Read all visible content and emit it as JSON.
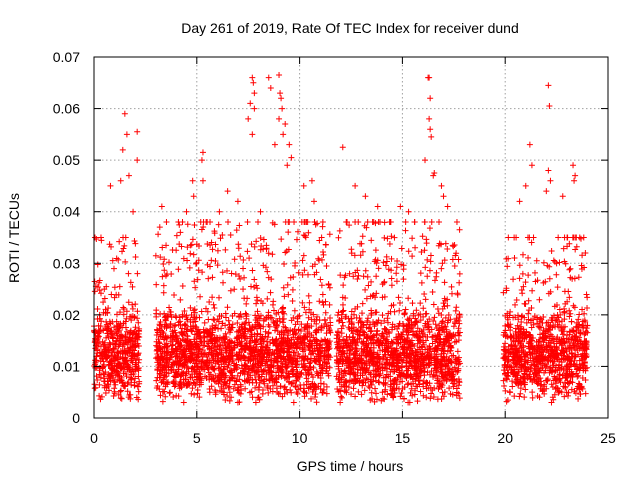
{
  "chart_data": {
    "type": "scatter",
    "title": "Day 261 of 2019, Rate Of TEC Index for receiver dund",
    "xlabel": "GPS time / hours",
    "ylabel": "ROTI / TECUs",
    "xlim": [
      0,
      25
    ],
    "ylim": [
      0,
      0.07
    ],
    "xticks": [
      0,
      5,
      10,
      15,
      20,
      25
    ],
    "yticks": [
      0,
      0.01,
      0.02,
      0.03,
      0.04,
      0.05,
      0.06,
      0.07
    ],
    "xtick_labels": [
      "0",
      "5",
      "10",
      "15",
      "20",
      "25"
    ],
    "ytick_labels": [
      "0",
      "0.01",
      "0.02",
      "0.03",
      "0.04",
      "0.05",
      "0.06",
      "0.07"
    ],
    "grid": true,
    "marker": "+",
    "color": "#ff0000",
    "data_gaps_hours": [
      [
        2.2,
        3.0
      ],
      [
        11.5,
        11.8
      ],
      [
        17.8,
        19.9
      ]
    ],
    "segments": [
      {
        "start": 0.0,
        "end": 2.2,
        "median": 0.012,
        "spread": 0.006,
        "max_typical": 0.035
      },
      {
        "start": 3.0,
        "end": 11.5,
        "median": 0.012,
        "spread": 0.006,
        "max_typical": 0.038
      },
      {
        "start": 11.8,
        "end": 17.8,
        "median": 0.012,
        "spread": 0.006,
        "max_typical": 0.038
      },
      {
        "start": 19.9,
        "end": 24.0,
        "median": 0.012,
        "spread": 0.006,
        "max_typical": 0.035
      }
    ],
    "peaks": [
      {
        "x": 1.5,
        "y": 0.059
      },
      {
        "x": 1.6,
        "y": 0.055
      },
      {
        "x": 1.4,
        "y": 0.052
      },
      {
        "x": 2.1,
        "y": 0.0555
      },
      {
        "x": 2.1,
        "y": 0.05
      },
      {
        "x": 1.3,
        "y": 0.046
      },
      {
        "x": 1.7,
        "y": 0.047
      },
      {
        "x": 3.3,
        "y": 0.041
      },
      {
        "x": 4.5,
        "y": 0.04
      },
      {
        "x": 4.8,
        "y": 0.046
      },
      {
        "x": 4.85,
        "y": 0.043
      },
      {
        "x": 5.3,
        "y": 0.0515
      },
      {
        "x": 5.25,
        "y": 0.05
      },
      {
        "x": 5.3,
        "y": 0.046
      },
      {
        "x": 6.1,
        "y": 0.04
      },
      {
        "x": 7.0,
        "y": 0.042
      },
      {
        "x": 7.5,
        "y": 0.058
      },
      {
        "x": 7.6,
        "y": 0.061
      },
      {
        "x": 7.7,
        "y": 0.066
      },
      {
        "x": 7.75,
        "y": 0.065
      },
      {
        "x": 7.8,
        "y": 0.063
      },
      {
        "x": 7.8,
        "y": 0.06
      },
      {
        "x": 7.7,
        "y": 0.055
      },
      {
        "x": 8.5,
        "y": 0.066
      },
      {
        "x": 8.6,
        "y": 0.064
      },
      {
        "x": 9.0,
        "y": 0.0665
      },
      {
        "x": 9.05,
        "y": 0.063
      },
      {
        "x": 9.1,
        "y": 0.062
      },
      {
        "x": 9.15,
        "y": 0.06
      },
      {
        "x": 9.0,
        "y": 0.058
      },
      {
        "x": 9.2,
        "y": 0.055
      },
      {
        "x": 9.3,
        "y": 0.057
      },
      {
        "x": 9.5,
        "y": 0.053
      },
      {
        "x": 8.8,
        "y": 0.053
      },
      {
        "x": 9.6,
        "y": 0.0505
      },
      {
        "x": 9.4,
        "y": 0.049
      },
      {
        "x": 10.6,
        "y": 0.046
      },
      {
        "x": 10.7,
        "y": 0.042
      },
      {
        "x": 12.1,
        "y": 0.0525
      },
      {
        "x": 12.7,
        "y": 0.045
      },
      {
        "x": 13.8,
        "y": 0.041
      },
      {
        "x": 15.3,
        "y": 0.04
      },
      {
        "x": 16.25,
        "y": 0.066
      },
      {
        "x": 16.3,
        "y": 0.066
      },
      {
        "x": 16.35,
        "y": 0.062
      },
      {
        "x": 16.3,
        "y": 0.058
      },
      {
        "x": 16.35,
        "y": 0.056
      },
      {
        "x": 16.4,
        "y": 0.0545
      },
      {
        "x": 16.1,
        "y": 0.05
      },
      {
        "x": 16.5,
        "y": 0.047
      },
      {
        "x": 16.55,
        "y": 0.0475
      },
      {
        "x": 16.9,
        "y": 0.045
      },
      {
        "x": 17.0,
        "y": 0.043
      },
      {
        "x": 17.2,
        "y": 0.041
      },
      {
        "x": 21.2,
        "y": 0.053
      },
      {
        "x": 21.3,
        "y": 0.049
      },
      {
        "x": 21.0,
        "y": 0.045
      },
      {
        "x": 22.1,
        "y": 0.0645
      },
      {
        "x": 22.15,
        "y": 0.0605
      },
      {
        "x": 22.1,
        "y": 0.048
      },
      {
        "x": 22.2,
        "y": 0.046
      },
      {
        "x": 22.0,
        "y": 0.044
      },
      {
        "x": 23.3,
        "y": 0.049
      },
      {
        "x": 23.4,
        "y": 0.047
      },
      {
        "x": 23.35,
        "y": 0.046
      },
      {
        "x": 23.9,
        "y": 0.032
      },
      {
        "x": 1.9,
        "y": 0.04
      },
      {
        "x": 0.8,
        "y": 0.045
      },
      {
        "x": 6.5,
        "y": 0.044
      },
      {
        "x": 10.2,
        "y": 0.045
      },
      {
        "x": 13.2,
        "y": 0.043
      },
      {
        "x": 14.9,
        "y": 0.041
      },
      {
        "x": 20.7,
        "y": 0.042
      },
      {
        "x": 22.8,
        "y": 0.043
      },
      {
        "x": 0.5,
        "y": 0.025
      },
      {
        "x": 3.2,
        "y": 0.037
      },
      {
        "x": 4.2,
        "y": 0.036
      },
      {
        "x": 8.1,
        "y": 0.04
      }
    ]
  }
}
